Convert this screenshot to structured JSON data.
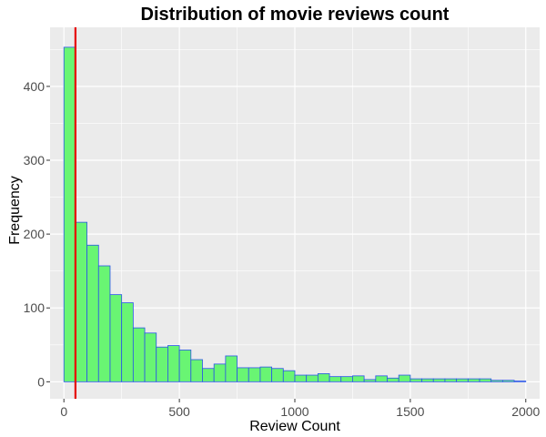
{
  "chart_data": {
    "type": "histogram",
    "title": "Distribution of movie reviews count",
    "xlabel": "Review Count",
    "ylabel": "Frequency",
    "xlim": [
      -60,
      2060
    ],
    "ylim": [
      -23,
      480
    ],
    "x_ticks": [
      0,
      500,
      1000,
      1500,
      2000
    ],
    "y_ticks": [
      0,
      100,
      200,
      300,
      400
    ],
    "bin_width": 50,
    "bin_start": 0,
    "counts": [
      453,
      216,
      185,
      157,
      118,
      107,
      73,
      66,
      47,
      49,
      43,
      30,
      18,
      24,
      35,
      19,
      19,
      20,
      18,
      15,
      9,
      9,
      11,
      7,
      7,
      8,
      3,
      8,
      5,
      9,
      4,
      4,
      4,
      4,
      4,
      4,
      4,
      2,
      2,
      1
    ],
    "bar_fill": "#69f573",
    "bar_stroke": "#2a55e8",
    "vline": {
      "x": 50,
      "color": "#e60000"
    },
    "grid": true,
    "panel_bg": "#ebebeb",
    "grid_color": "#ffffff"
  }
}
